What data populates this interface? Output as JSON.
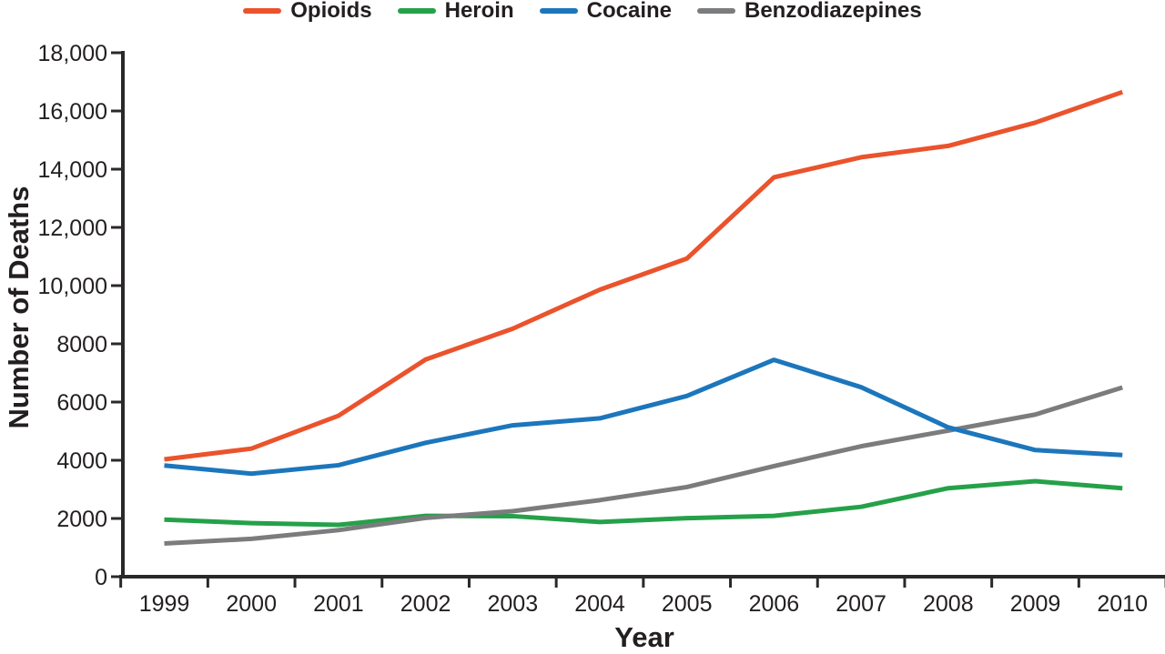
{
  "colors": {
    "text": "#231F20",
    "axis": "#2B2829",
    "opioids": "#EA532C",
    "heroin": "#25A149",
    "cocaine": "#1C76BC",
    "benzodiazepines": "#7B7C7E"
  },
  "chart_data": {
    "type": "line",
    "xlabel": "Year",
    "ylabel": "Number of Deaths",
    "categories": [
      "1999",
      "2000",
      "2001",
      "2002",
      "2003",
      "2004",
      "2005",
      "2006",
      "2007",
      "2008",
      "2009",
      "2010"
    ],
    "series": [
      {
        "name": "Opioids",
        "color": "#EA532C",
        "values": [
          4030,
          4400,
          5530,
          7460,
          8520,
          9860,
          10930,
          13720,
          14410,
          14800,
          15600,
          16650
        ]
      },
      {
        "name": "Heroin",
        "color": "#25A149",
        "values": [
          1960,
          1840,
          1780,
          2090,
          2080,
          1880,
          2010,
          2090,
          2400,
          3040,
          3280,
          3040
        ]
      },
      {
        "name": "Cocaine",
        "color": "#1C76BC",
        "values": [
          3820,
          3540,
          3830,
          4600,
          5200,
          5440,
          6210,
          7450,
          6510,
          5130,
          4350,
          4180
        ]
      },
      {
        "name": "Benzodiazepines",
        "color": "#7B7C7E",
        "values": [
          1140,
          1300,
          1600,
          2020,
          2250,
          2630,
          3080,
          3800,
          4480,
          5020,
          5570,
          6500
        ]
      }
    ],
    "ylim": [
      0,
      18000
    ],
    "y_ticks": [
      0,
      2000,
      4000,
      6000,
      8000,
      10000,
      12000,
      14000,
      16000,
      18000
    ],
    "y_tick_labels": [
      "0",
      "2000",
      "4000",
      "6000",
      "8000",
      "10,000",
      "12,000",
      "14,000",
      "16,000",
      "18,000"
    ],
    "grid": false,
    "legend_position": "top"
  }
}
